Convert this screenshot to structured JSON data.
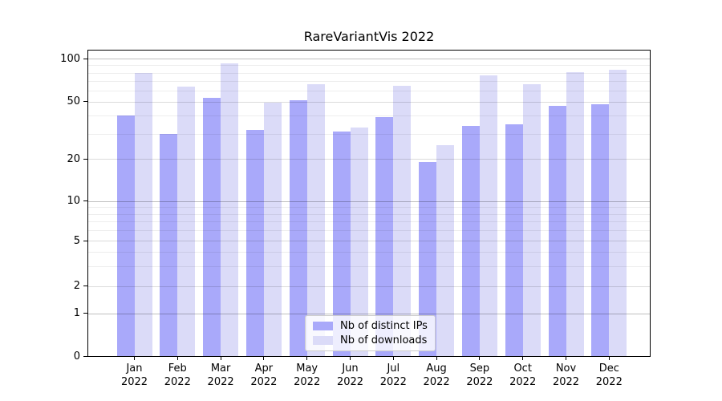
{
  "page": {
    "background": "#ffffff"
  },
  "chart_data": {
    "type": "bar",
    "title": "RareVariantVis 2022",
    "categories": [
      "Jan",
      "Feb",
      "Mar",
      "Apr",
      "May",
      "Jun",
      "Jul",
      "Aug",
      "Sep",
      "Oct",
      "Nov",
      "Dec"
    ],
    "category_year": "2022",
    "series": [
      {
        "name": "Nb of distinct IPs",
        "color": "#a9a9fa",
        "values": [
          40,
          30,
          53,
          32,
          51,
          31,
          39,
          19,
          34,
          35,
          47,
          48
        ]
      },
      {
        "name": "Nb of downloads",
        "color": "#dbdbf8",
        "values": [
          80,
          64,
          93,
          49,
          66,
          33,
          65,
          25,
          76,
          66,
          81,
          84
        ]
      }
    ],
    "xlabel": "",
    "ylabel": "",
    "y_axis": {
      "scale": "log-like with 0 baseline (symlog)",
      "major_ticks": [
        0,
        1,
        2,
        5,
        10,
        20,
        50,
        100
      ],
      "minor_ticks": [
        3,
        4,
        6,
        7,
        8,
        9,
        30,
        40,
        60,
        70,
        80,
        90
      ],
      "ylim": [
        0,
        113
      ],
      "tick_fractions": {
        "0": 0,
        "1": 0.1399,
        "2": 0.2291,
        "5": 0.378,
        "10": 0.5073,
        "20": 0.6449,
        "50": 0.8328,
        "100": 0.973
      }
    },
    "grid": {
      "on": true,
      "major_color": "rgba(0,0,0,0.25)",
      "mid_color": "rgba(0,0,0,0.14)",
      "minor_color": "rgba(0,0,0,0.07)"
    },
    "legend": {
      "position": "inside lower-center",
      "entries": [
        "Nb of distinct IPs",
        "Nb of downloads"
      ]
    }
  }
}
